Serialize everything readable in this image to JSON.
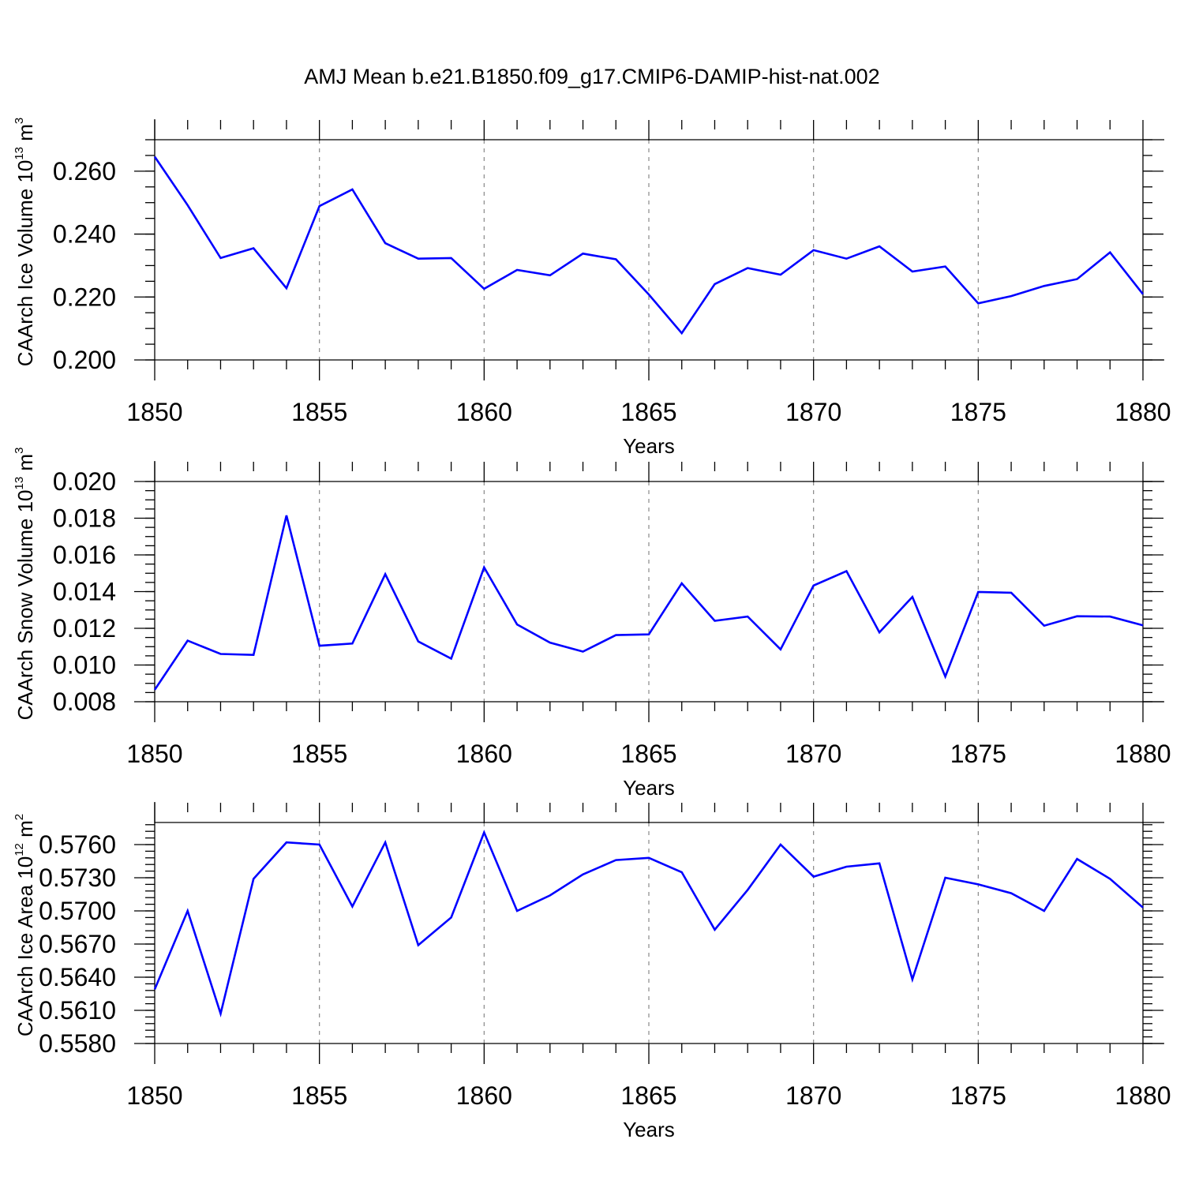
{
  "figure_title": "AMJ Mean b.e21.B1850.f09_g17.CMIP6-DAMIP-hist-nat.002",
  "chart_data": [
    {
      "type": "line",
      "title": "AMJ Mean b.e21.B1850.f09_g17.CMIP6-DAMIP-hist-nat.002",
      "xlabel": "Years",
      "ylabel": "CAArch Ice Volume 10",
      "ylabel_exp": "13",
      "ylabel_unit": "m",
      "ylabel_unit_exp": "3",
      "xlim": [
        1850,
        1880
      ],
      "ylim": [
        0.2,
        0.27
      ],
      "xticks": [
        1850,
        1855,
        1860,
        1865,
        1870,
        1875,
        1880
      ],
      "yticks": [
        0.2,
        0.22,
        0.24,
        0.26
      ],
      "ytick_labels": [
        "0.200",
        "0.220",
        "0.240",
        "0.260"
      ],
      "ytick_minor_step": 0.005,
      "vertical_gridlines": [
        1855,
        1860,
        1865,
        1870,
        1875
      ],
      "line_color": "#0000ff",
      "x": [
        1850,
        1851,
        1852,
        1853,
        1854,
        1855,
        1856,
        1857,
        1858,
        1859,
        1860,
        1861,
        1862,
        1863,
        1864,
        1865,
        1866,
        1867,
        1868,
        1869,
        1870,
        1871,
        1872,
        1873,
        1874,
        1875,
        1876,
        1877,
        1878,
        1879,
        1880
      ],
      "values": [
        0.2646,
        0.2492,
        0.2324,
        0.2355,
        0.2228,
        0.2489,
        0.2542,
        0.2371,
        0.2322,
        0.2324,
        0.2226,
        0.2286,
        0.2269,
        0.2338,
        0.232,
        0.2208,
        0.2085,
        0.2241,
        0.2292,
        0.2271,
        0.2349,
        0.2322,
        0.2361,
        0.2281,
        0.2297,
        0.218,
        0.2203,
        0.2235,
        0.2257,
        0.2342,
        0.2209
      ]
    },
    {
      "type": "line",
      "xlabel": "Years",
      "ylabel": "CAArch Snow Volume 10",
      "ylabel_exp": "13",
      "ylabel_unit": "m",
      "ylabel_unit_exp": "3",
      "xlim": [
        1850,
        1880
      ],
      "ylim": [
        0.008,
        0.02
      ],
      "xticks": [
        1850,
        1855,
        1860,
        1865,
        1870,
        1875,
        1880
      ],
      "yticks": [
        0.008,
        0.01,
        0.012,
        0.014,
        0.016,
        0.018,
        0.02
      ],
      "ytick_labels": [
        "0.008",
        "0.010",
        "0.012",
        "0.014",
        "0.016",
        "0.018",
        "0.020"
      ],
      "ytick_minor_step": 0.0005,
      "vertical_gridlines": [
        1855,
        1860,
        1865,
        1870,
        1875
      ],
      "line_color": "#0000ff",
      "x": [
        1850,
        1851,
        1852,
        1853,
        1854,
        1855,
        1856,
        1857,
        1858,
        1859,
        1860,
        1861,
        1862,
        1863,
        1864,
        1865,
        1866,
        1867,
        1868,
        1869,
        1870,
        1871,
        1872,
        1873,
        1874,
        1875,
        1876,
        1877,
        1878,
        1879,
        1880
      ],
      "values": [
        0.00865,
        0.01133,
        0.0106,
        0.01055,
        0.01815,
        0.01105,
        0.01117,
        0.01495,
        0.01128,
        0.01035,
        0.01532,
        0.01221,
        0.01122,
        0.01073,
        0.01163,
        0.01167,
        0.01445,
        0.01241,
        0.01264,
        0.01085,
        0.01433,
        0.01512,
        0.01178,
        0.01371,
        0.00937,
        0.01398,
        0.01394,
        0.01214,
        0.01266,
        0.01264,
        0.01216
      ]
    },
    {
      "type": "line",
      "xlabel": "Years",
      "ylabel": "CAArch Ice Area 10",
      "ylabel_exp": "12",
      "ylabel_unit": "m",
      "ylabel_unit_exp": "2",
      "xlim": [
        1850,
        1880
      ],
      "ylim": [
        0.558,
        0.578
      ],
      "xticks": [
        1850,
        1855,
        1860,
        1865,
        1870,
        1875,
        1880
      ],
      "yticks": [
        0.558,
        0.561,
        0.564,
        0.567,
        0.57,
        0.573,
        0.576
      ],
      "ytick_labels": [
        "0.5580",
        "0.5610",
        "0.5640",
        "0.5670",
        "0.5700",
        "0.5730",
        "0.5760"
      ],
      "ytick_minor_step": 0.0006,
      "vertical_gridlines": [
        1855,
        1860,
        1865,
        1870,
        1875
      ],
      "line_color": "#0000ff",
      "x": [
        1850,
        1851,
        1852,
        1853,
        1854,
        1855,
        1856,
        1857,
        1858,
        1859,
        1860,
        1861,
        1862,
        1863,
        1864,
        1865,
        1866,
        1867,
        1868,
        1869,
        1870,
        1871,
        1872,
        1873,
        1874,
        1875,
        1876,
        1877,
        1878,
        1879,
        1880
      ],
      "values": [
        0.5629,
        0.57,
        0.5607,
        0.5729,
        0.5762,
        0.576,
        0.5704,
        0.5762,
        0.5669,
        0.5694,
        0.5771,
        0.57,
        0.5714,
        0.5733,
        0.5746,
        0.5748,
        0.5735,
        0.5683,
        0.5719,
        0.576,
        0.5731,
        0.574,
        0.5743,
        0.5638,
        0.573,
        0.5724,
        0.5716,
        0.57,
        0.5747,
        0.5729,
        0.5703
      ]
    }
  ]
}
